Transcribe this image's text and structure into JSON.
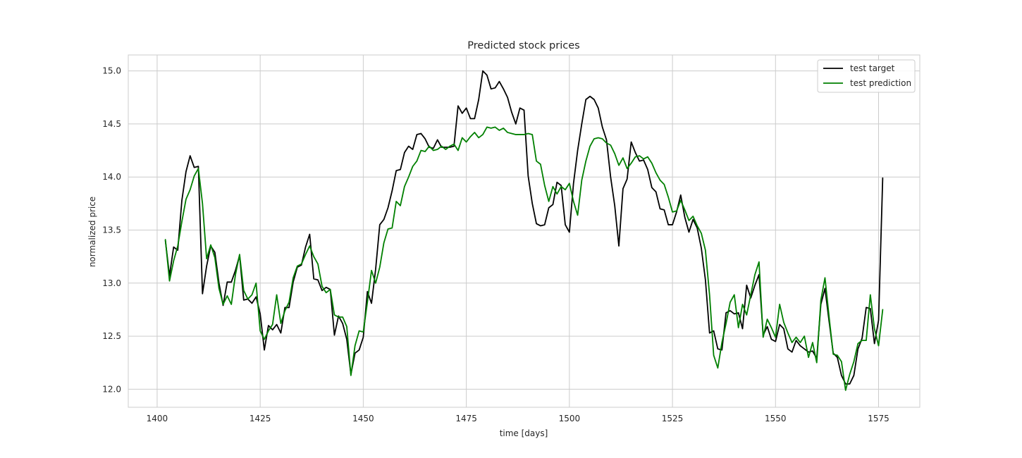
{
  "chart_data": {
    "type": "line",
    "title": "Predicted stock prices",
    "xlabel": "time [days]",
    "ylabel": "normalized price",
    "xlim": [
      1393,
      1585
    ],
    "ylim": [
      11.83,
      15.15
    ],
    "xticks": [
      1400,
      1425,
      1450,
      1475,
      1500,
      1525,
      1550,
      1575
    ],
    "xtick_labels": [
      "1400",
      "1425",
      "1450",
      "1475",
      "1500",
      "1525",
      "1550",
      "1575"
    ],
    "yticks": [
      12.0,
      12.5,
      13.0,
      13.5,
      14.0,
      14.5,
      15.0
    ],
    "ytick_labels": [
      "12.0",
      "12.5",
      "13.0",
      "13.5",
      "14.0",
      "14.5",
      "15.0"
    ],
    "grid": true,
    "legend_position": "top-right",
    "series": [
      {
        "name": "test target",
        "color": "#000000",
        "x": [
          1402,
          1403,
          1404,
          1405,
          1406,
          1407,
          1408,
          1409,
          1410,
          1411,
          1412,
          1413,
          1414,
          1415,
          1416,
          1417,
          1418,
          1419,
          1420,
          1421,
          1422,
          1423,
          1424,
          1425,
          1426,
          1427,
          1428,
          1429,
          1430,
          1431,
          1432,
          1433,
          1434,
          1435,
          1436,
          1437,
          1438,
          1439,
          1440,
          1441,
          1442,
          1443,
          1444,
          1445,
          1446,
          1447,
          1448,
          1449,
          1450,
          1451,
          1452,
          1453,
          1454,
          1455,
          1456,
          1457,
          1458,
          1459,
          1460,
          1461,
          1462,
          1463,
          1464,
          1465,
          1466,
          1467,
          1468,
          1469,
          1470,
          1471,
          1472,
          1473,
          1474,
          1475,
          1476,
          1477,
          1478,
          1479,
          1480,
          1481,
          1482,
          1483,
          1484,
          1485,
          1486,
          1487,
          1488,
          1489,
          1490,
          1491,
          1492,
          1493,
          1494,
          1495,
          1496,
          1497,
          1498,
          1499,
          1500,
          1501,
          1502,
          1503,
          1504,
          1505,
          1506,
          1507,
          1508,
          1509,
          1510,
          1511,
          1512,
          1513,
          1514,
          1515,
          1516,
          1517,
          1518,
          1519,
          1520,
          1521,
          1522,
          1523,
          1524,
          1525,
          1526,
          1527,
          1528,
          1529,
          1530,
          1531,
          1532,
          1533,
          1534,
          1535,
          1536,
          1537,
          1538,
          1539,
          1540,
          1541,
          1542,
          1543,
          1544,
          1545,
          1546,
          1547,
          1548,
          1549,
          1550,
          1551,
          1552,
          1553,
          1554,
          1555,
          1556,
          1557,
          1558,
          1559,
          1560,
          1561,
          1562,
          1563,
          1564,
          1565,
          1566,
          1567,
          1568,
          1569,
          1570,
          1571,
          1572,
          1573,
          1574,
          1575,
          1576
        ],
        "y": [
          13.4,
          13.07,
          13.34,
          13.31,
          13.78,
          14.05,
          14.2,
          14.09,
          14.1,
          12.9,
          13.16,
          13.35,
          13.29,
          13.0,
          12.79,
          13.01,
          13.01,
          13.12,
          13.26,
          12.84,
          12.85,
          12.81,
          12.87,
          12.71,
          12.37,
          12.6,
          12.56,
          12.61,
          12.53,
          12.77,
          12.77,
          13.01,
          13.15,
          13.17,
          13.34,
          13.46,
          13.04,
          13.03,
          12.93,
          12.96,
          12.94,
          12.51,
          12.69,
          12.62,
          12.47,
          12.14,
          12.34,
          12.37,
          12.49,
          12.92,
          12.81,
          13.13,
          13.55,
          13.6,
          13.71,
          13.87,
          14.06,
          14.07,
          14.23,
          14.29,
          14.26,
          14.4,
          14.41,
          14.36,
          14.28,
          14.27,
          14.35,
          14.28,
          14.28,
          14.28,
          14.29,
          14.67,
          14.6,
          14.65,
          14.55,
          14.55,
          14.73,
          15.0,
          14.96,
          14.83,
          14.84,
          14.9,
          14.83,
          14.75,
          14.61,
          14.5,
          14.65,
          14.63,
          14.01,
          13.75,
          13.56,
          13.54,
          13.55,
          13.71,
          13.74,
          13.95,
          13.92,
          13.55,
          13.48,
          13.94,
          14.25,
          14.5,
          14.73,
          14.76,
          14.73,
          14.65,
          14.47,
          14.35,
          14.0,
          13.73,
          13.35,
          13.89,
          13.98,
          14.33,
          14.23,
          14.15,
          14.16,
          14.07,
          13.9,
          13.86,
          13.7,
          13.69,
          13.55,
          13.55,
          13.67,
          13.83,
          13.62,
          13.48,
          13.6,
          13.52,
          13.33,
          13.03,
          12.53,
          12.55,
          12.38,
          12.37,
          12.72,
          12.74,
          12.71,
          12.72,
          12.57,
          12.98,
          12.86,
          12.98,
          13.08,
          12.51,
          12.59,
          12.47,
          12.45,
          12.61,
          12.57,
          12.38,
          12.35,
          12.46,
          12.41,
          12.38,
          12.35,
          12.36,
          12.29,
          12.8,
          12.95,
          12.64,
          12.34,
          12.3,
          12.13,
          12.05,
          12.05,
          12.13,
          12.38,
          12.48,
          12.77,
          12.76,
          12.43,
          12.65,
          13.99
        ]
      },
      {
        "name": "test prediction",
        "color": "#008000",
        "x": [
          1402,
          1403,
          1404,
          1405,
          1406,
          1407,
          1408,
          1409,
          1410,
          1411,
          1412,
          1413,
          1414,
          1415,
          1416,
          1417,
          1418,
          1419,
          1420,
          1421,
          1422,
          1423,
          1424,
          1425,
          1426,
          1427,
          1428,
          1429,
          1430,
          1431,
          1432,
          1433,
          1434,
          1435,
          1436,
          1437,
          1438,
          1439,
          1440,
          1441,
          1442,
          1443,
          1444,
          1445,
          1446,
          1447,
          1448,
          1449,
          1450,
          1451,
          1452,
          1453,
          1454,
          1455,
          1456,
          1457,
          1458,
          1459,
          1460,
          1461,
          1462,
          1463,
          1464,
          1465,
          1466,
          1467,
          1468,
          1469,
          1470,
          1471,
          1472,
          1473,
          1474,
          1475,
          1476,
          1477,
          1478,
          1479,
          1480,
          1481,
          1482,
          1483,
          1484,
          1485,
          1486,
          1487,
          1488,
          1489,
          1490,
          1491,
          1492,
          1493,
          1494,
          1495,
          1496,
          1497,
          1498,
          1499,
          1500,
          1501,
          1502,
          1503,
          1504,
          1505,
          1506,
          1507,
          1508,
          1509,
          1510,
          1511,
          1512,
          1513,
          1514,
          1515,
          1516,
          1517,
          1518,
          1519,
          1520,
          1521,
          1522,
          1523,
          1524,
          1525,
          1526,
          1527,
          1528,
          1529,
          1530,
          1531,
          1532,
          1533,
          1534,
          1535,
          1536,
          1537,
          1538,
          1539,
          1540,
          1541,
          1542,
          1543,
          1544,
          1545,
          1546,
          1547,
          1548,
          1549,
          1550,
          1551,
          1552,
          1553,
          1554,
          1555,
          1556,
          1557,
          1558,
          1559,
          1560,
          1561,
          1562,
          1563,
          1564,
          1565,
          1566,
          1567,
          1568,
          1569,
          1570,
          1571,
          1572,
          1573,
          1574,
          1575,
          1576
        ],
        "y": [
          13.41,
          13.02,
          13.21,
          13.35,
          13.58,
          13.79,
          13.88,
          14.01,
          14.08,
          13.75,
          13.23,
          13.36,
          13.24,
          12.95,
          12.8,
          12.88,
          12.8,
          13.08,
          13.27,
          12.93,
          12.85,
          12.89,
          13.0,
          12.55,
          12.47,
          12.55,
          12.61,
          12.89,
          12.62,
          12.74,
          12.82,
          13.05,
          13.16,
          13.18,
          13.27,
          13.35,
          13.25,
          13.18,
          12.97,
          12.91,
          12.94,
          12.7,
          12.68,
          12.68,
          12.59,
          12.13,
          12.41,
          12.55,
          12.54,
          12.82,
          13.12,
          13.0,
          13.15,
          13.38,
          13.51,
          13.52,
          13.77,
          13.73,
          13.91,
          14.0,
          14.1,
          14.15,
          14.25,
          14.24,
          14.29,
          14.25,
          14.26,
          14.29,
          14.26,
          14.29,
          14.31,
          14.25,
          14.37,
          14.33,
          14.38,
          14.42,
          14.37,
          14.4,
          14.47,
          14.46,
          14.47,
          14.44,
          14.46,
          14.42,
          14.41,
          14.4,
          14.4,
          14.4,
          14.41,
          14.4,
          14.15,
          14.12,
          13.92,
          13.77,
          13.91,
          13.84,
          13.91,
          13.88,
          13.94,
          13.77,
          13.64,
          13.97,
          14.15,
          14.29,
          14.36,
          14.37,
          14.36,
          14.32,
          14.3,
          14.22,
          14.11,
          14.18,
          14.08,
          14.13,
          14.19,
          14.2,
          14.17,
          14.19,
          14.13,
          14.04,
          13.97,
          13.93,
          13.81,
          13.67,
          13.68,
          13.78,
          13.69,
          13.59,
          13.63,
          13.54,
          13.47,
          13.31,
          12.89,
          12.32,
          12.2,
          12.44,
          12.62,
          12.82,
          12.89,
          12.58,
          12.8,
          12.7,
          12.89,
          13.08,
          13.2,
          12.49,
          12.66,
          12.58,
          12.49,
          12.8,
          12.63,
          12.53,
          12.44,
          12.49,
          12.44,
          12.5,
          12.3,
          12.44,
          12.25,
          12.84,
          13.05,
          12.68,
          12.33,
          12.32,
          12.26,
          11.99,
          12.14,
          12.26,
          12.43,
          12.46,
          12.46,
          12.89,
          12.57,
          12.41,
          12.75
        ]
      }
    ]
  }
}
